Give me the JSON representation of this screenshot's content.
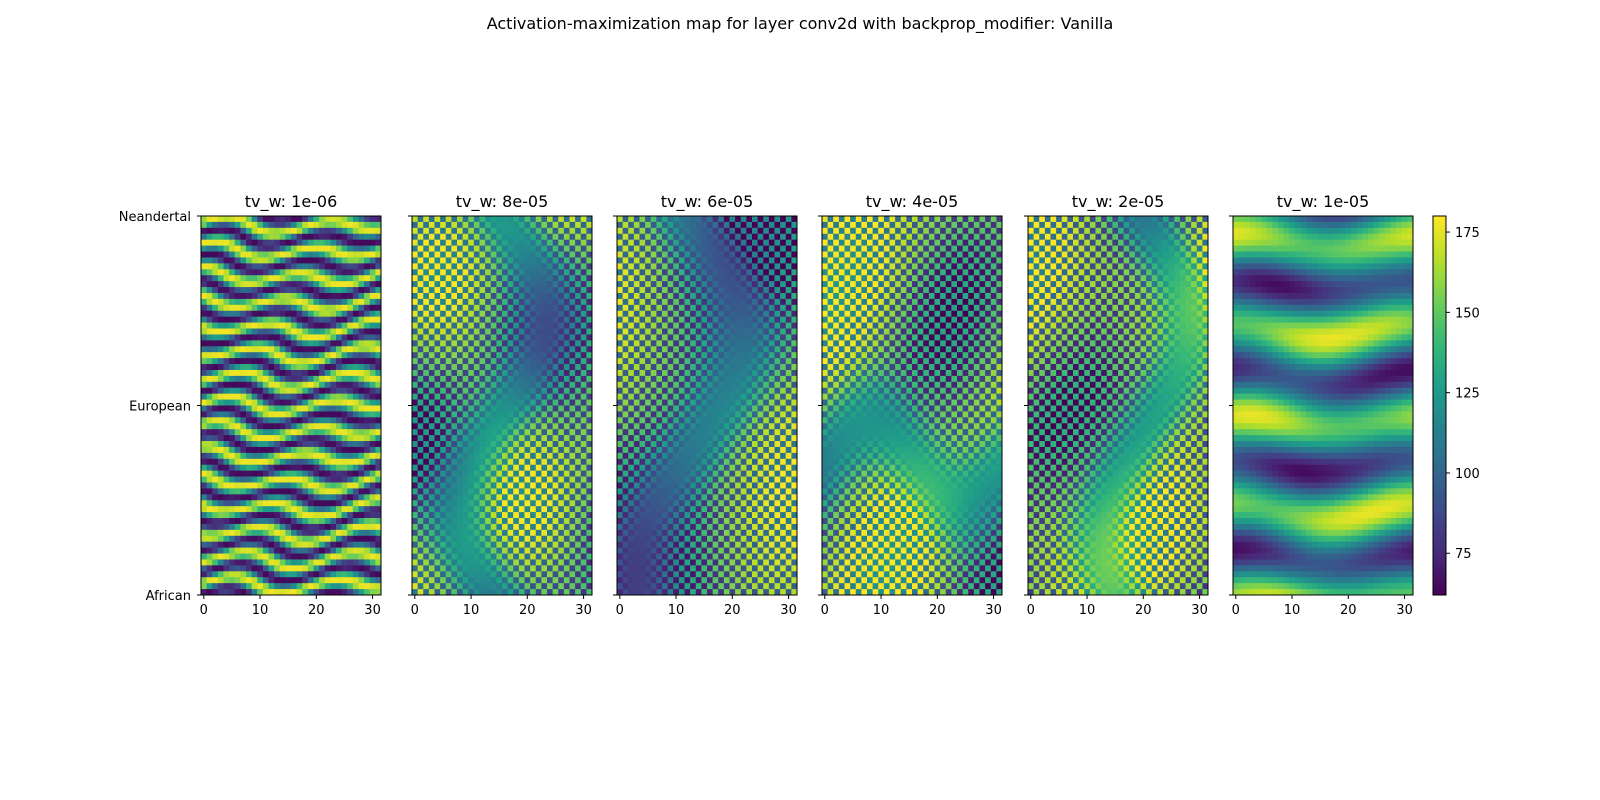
{
  "chart_data": {
    "type": "heatmap",
    "title": "Activation-maximization map for layer conv2d with backprop_modifier: Vanilla",
    "y_tick_labels": [
      "Neandertal",
      "European",
      "African"
    ],
    "x_ticks": [
      0,
      10,
      20,
      30
    ],
    "x_range": [
      0,
      31
    ],
    "colorbar": {
      "ticks": [
        75,
        100,
        125,
        150,
        175
      ],
      "range": [
        62,
        180
      ],
      "colormap": "viridis"
    },
    "panels": [
      {
        "title": "tv_w: 1e-06",
        "pattern": "stripes"
      },
      {
        "title": "tv_w: 8e-05",
        "pattern": "checker"
      },
      {
        "title": "tv_w: 6e-05",
        "pattern": "checker"
      },
      {
        "title": "tv_w: 4e-05",
        "pattern": "checker"
      },
      {
        "title": "tv_w: 2e-05",
        "pattern": "checker"
      },
      {
        "title": "tv_w: 1e-05",
        "pattern": "bands"
      }
    ]
  }
}
